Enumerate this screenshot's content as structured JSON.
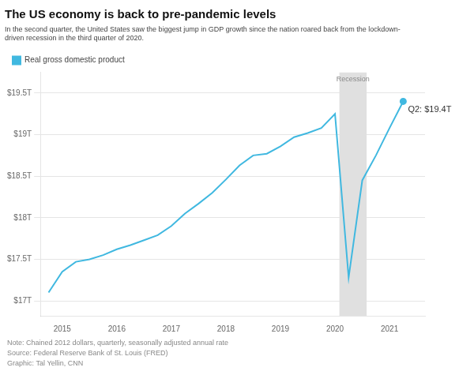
{
  "chart_data": {
    "type": "line",
    "title": "The US economy is back to pre-pandemic levels",
    "subtitle": "In the second quarter, the United States saw the biggest jump in GDP growth since the nation roared back from the lockdown-\ndriven recession in the third quarter of 2020.",
    "x": [
      2014.75,
      2015.0,
      2015.25,
      2015.5,
      2015.75,
      2016.0,
      2016.25,
      2016.5,
      2016.75,
      2017.0,
      2017.25,
      2017.5,
      2017.75,
      2018.0,
      2018.25,
      2018.5,
      2018.75,
      2019.0,
      2019.25,
      2019.5,
      2019.75,
      2020.0,
      2020.25,
      2020.5,
      2020.75,
      2021.0,
      2021.25
    ],
    "series": [
      {
        "name": "Real gross domestic product",
        "color": "#40b8e0",
        "values": [
          17.1,
          17.35,
          17.47,
          17.5,
          17.55,
          17.62,
          17.67,
          17.73,
          17.79,
          17.9,
          18.05,
          18.17,
          18.3,
          18.46,
          18.63,
          18.75,
          18.77,
          18.86,
          18.97,
          19.02,
          19.08,
          19.25,
          17.28,
          18.45,
          18.75,
          19.08,
          19.4
        ]
      }
    ],
    "xlim": [
      2014.6,
      2021.65
    ],
    "xticks": [
      2015,
      2016,
      2017,
      2018,
      2019,
      2020,
      2021
    ],
    "ylim": [
      16.82,
      19.75
    ],
    "yticks": [
      {
        "value": 17.0,
        "label": "$17T"
      },
      {
        "value": 17.5,
        "label": "$17.5T"
      },
      {
        "value": 18.0,
        "label": "$18T"
      },
      {
        "value": 18.5,
        "label": "$18.5T"
      },
      {
        "value": 19.0,
        "label": "$19T"
      },
      {
        "value": 19.5,
        "label": "$19.5T"
      }
    ],
    "grid": "y",
    "legend": "top left",
    "spans": [
      {
        "start": 2020.08,
        "end": 2020.58,
        "label": "Recession",
        "color": "#e0e0e0"
      }
    ],
    "annotations": [
      {
        "text": "Q2: $19.4T",
        "x": 2021.25,
        "y": 19.4
      }
    ],
    "notes": [
      "Note: Chained 2012 dollars, quarterly, seasonally adjusted annual rate",
      "Source: Federal Reserve Bank of St. Louis (FRED)",
      "Graphic: Tal Yellin, CNN"
    ]
  }
}
